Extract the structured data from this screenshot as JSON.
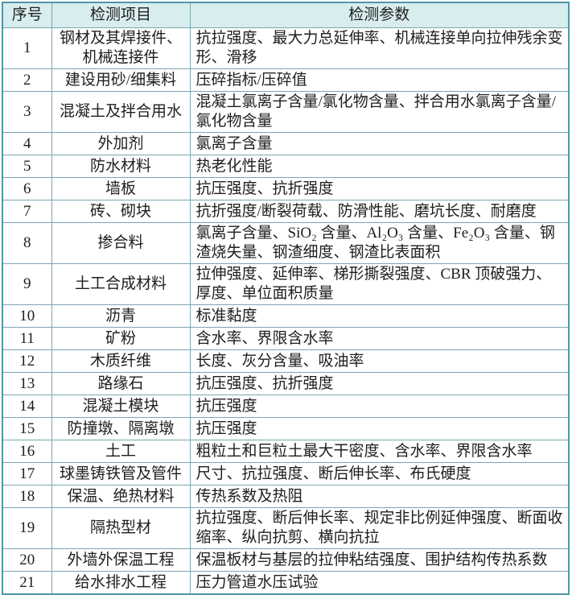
{
  "colors": {
    "header_bg": "#d8edee",
    "inner_border": "#7ba6b1",
    "outer_border": "#4f96a6",
    "text": "#1e1e1e"
  },
  "table": {
    "headers": [
      "序号",
      "检测项目",
      "检测参数"
    ],
    "rows": [
      {
        "no": "1",
        "item": "钢材及其焊接件、机械连接件",
        "params": "抗拉强度、最大力总延伸率、机械连接单向拉伸残余变形、滑移"
      },
      {
        "no": "2",
        "item": "建设用砂/细集料",
        "params": "压碎指标/压碎值"
      },
      {
        "no": "3",
        "item": "混凝土及拌合用水",
        "params": "混凝土氯离子含量/氯化物含量、拌合用水氯离子含量/氯化物含量"
      },
      {
        "no": "4",
        "item": "外加剂",
        "params": "氯离子含量"
      },
      {
        "no": "5",
        "item": "防水材料",
        "params": "热老化性能"
      },
      {
        "no": "6",
        "item": "墙板",
        "params": "抗压强度、抗折强度"
      },
      {
        "no": "7",
        "item": "砖、砌块",
        "params": "抗折强度/断裂荷载、防滑性能、磨坑长度、耐磨度"
      },
      {
        "no": "8",
        "item": "掺合料",
        "params": "氯离子含量、SiO₂ 含量、Al₂O₃ 含量、Fe₂O₃ 含量、钢渣烧失量、钢渣细度、钢渣比表面积"
      },
      {
        "no": "9",
        "item": "土工合成材料",
        "params": "拉伸强度、延伸率、梯形撕裂强度、CBR 顶破强力、厚度、单位面积质量"
      },
      {
        "no": "10",
        "item": "沥青",
        "params": "标准黏度"
      },
      {
        "no": "11",
        "item": "矿粉",
        "params": "含水率、界限含水率"
      },
      {
        "no": "12",
        "item": "木质纤维",
        "params": "长度、灰分含量、吸油率"
      },
      {
        "no": "13",
        "item": "路缘石",
        "params": "抗压强度、抗折强度"
      },
      {
        "no": "14",
        "item": "混凝土模块",
        "params": "抗压强度"
      },
      {
        "no": "15",
        "item": "防撞墩、隔离墩",
        "params": "抗压强度"
      },
      {
        "no": "16",
        "item": "土工",
        "params": "粗粒土和巨粒土最大干密度、含水率、界限含水率"
      },
      {
        "no": "17",
        "item": "球墨铸铁管及管件",
        "params": "尺寸、抗拉强度、断后伸长率、布氏硬度"
      },
      {
        "no": "18",
        "item": "保温、绝热材料",
        "params": "传热系数及热阻"
      },
      {
        "no": "19",
        "item": "隔热型材",
        "params": "抗拉强度、断后伸长率、规定非比例延伸强度、断面收缩率、纵向抗剪、横向抗拉"
      },
      {
        "no": "20",
        "item": "外墙外保温工程",
        "params": "保温板材与基层的拉伸粘结强度、围护结构传热系数"
      },
      {
        "no": "21",
        "item": "给水排水工程",
        "params": "压力管道水压试验"
      }
    ]
  }
}
